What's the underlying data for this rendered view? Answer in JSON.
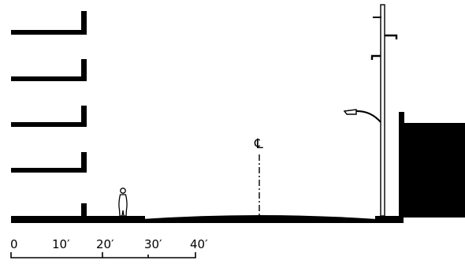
{
  "diagram": {
    "kind": "street cross-section",
    "centerline_symbol": "℄",
    "floor_count": 4,
    "scale_bar": {
      "ticks": [
        "0",
        "10′",
        "20′",
        "30′",
        "40′"
      ]
    },
    "colors": {
      "ink": "#000000",
      "paper": "#ffffff"
    }
  }
}
